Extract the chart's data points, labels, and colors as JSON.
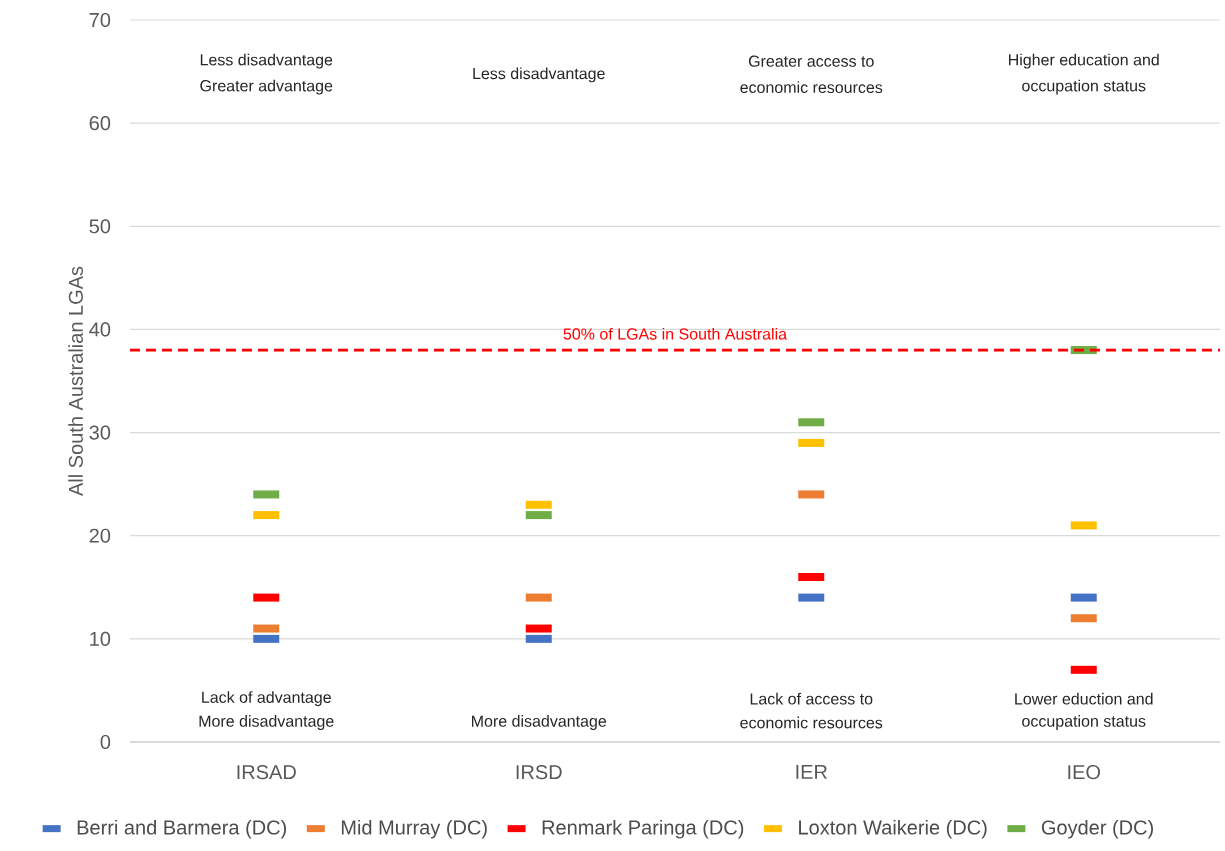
{
  "chart_data": {
    "type": "scatter",
    "ylabel": "All South Australian LGAs",
    "categories": [
      "IRSAD",
      "IRSD",
      "IER",
      "IEO"
    ],
    "ylim": [
      0,
      70
    ],
    "yticks": [
      0,
      10,
      20,
      30,
      40,
      50,
      60,
      70
    ],
    "grid": "y",
    "legend": "bottom",
    "series": [
      {
        "name": "Berri and Barmera (DC)",
        "color": "#4472c4",
        "values": [
          10,
          10,
          14,
          14
        ]
      },
      {
        "name": "Mid Murray (DC)",
        "color": "#ed7d31",
        "values": [
          11,
          14,
          24,
          12
        ]
      },
      {
        "name": "Renmark Paringa (DC)",
        "color": "#ff0000",
        "values": [
          14,
          11,
          16,
          7
        ]
      },
      {
        "name": "Loxton Waikerie (DC)",
        "color": "#ffc000",
        "values": [
          22,
          23,
          29,
          21
        ]
      },
      {
        "name": "Goyder (DC)",
        "color": "#70ad47",
        "values": [
          24,
          22,
          31,
          38
        ]
      }
    ],
    "ref_lines": [
      {
        "axis": "y",
        "value": 38,
        "label": "50% of LGAs in South Australia",
        "color": "#ff0000",
        "line_style": "dashed"
      }
    ],
    "annotations": [
      "Less disadvantage",
      "Greater  advantage",
      "Less disadvantage",
      "Greater access to",
      "economic resources",
      "Higher education and",
      "occupation status",
      "Lack of advantage",
      "More disadvantage",
      "More disadvantage",
      "Lack of access to",
      "economic resources",
      "Lower eduction and",
      "occupation status"
    ]
  }
}
